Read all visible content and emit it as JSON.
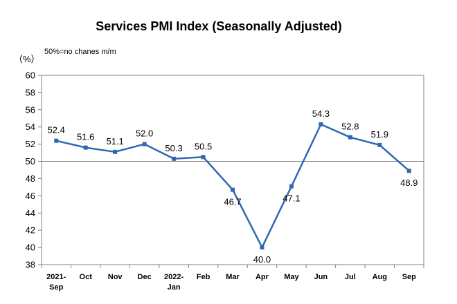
{
  "chart_data": {
    "type": "line",
    "title": "Services PMI Index (Seasonally Adjusted)",
    "unit_label": "（%）",
    "note": "50%=no chanes m/m",
    "categories": [
      [
        "2021-",
        "Sep"
      ],
      [
        "Oct"
      ],
      [
        "Nov"
      ],
      [
        "Dec"
      ],
      [
        "2022-",
        "Jan"
      ],
      [
        "Feb"
      ],
      [
        "Mar"
      ],
      [
        "Apr"
      ],
      [
        "May"
      ],
      [
        "Jun"
      ],
      [
        "Jul"
      ],
      [
        "Aug"
      ],
      [
        "Sep"
      ]
    ],
    "series": [
      {
        "values": [
          52.4,
          51.6,
          51.1,
          52.0,
          50.3,
          50.5,
          46.7,
          40.0,
          47.1,
          54.3,
          52.8,
          51.9,
          48.9
        ]
      }
    ],
    "data_labels": [
      "52.4",
      "51.6",
      "51.1",
      "52.0",
      "50.3",
      "50.5",
      "46.7",
      "40.0",
      "47.1",
      "54.3",
      "52.8",
      "51.9",
      "48.9"
    ],
    "label_placement": [
      "above",
      "above",
      "above",
      "above",
      "above",
      "above",
      "below",
      "below",
      "below",
      "above",
      "above",
      "above",
      "below"
    ],
    "ylim": [
      38,
      60
    ],
    "yticks": [
      38,
      40,
      42,
      44,
      46,
      48,
      50,
      52,
      54,
      56,
      58,
      60
    ],
    "reference_line": 50,
    "grid": false,
    "line_color": "#2e68b1"
  }
}
